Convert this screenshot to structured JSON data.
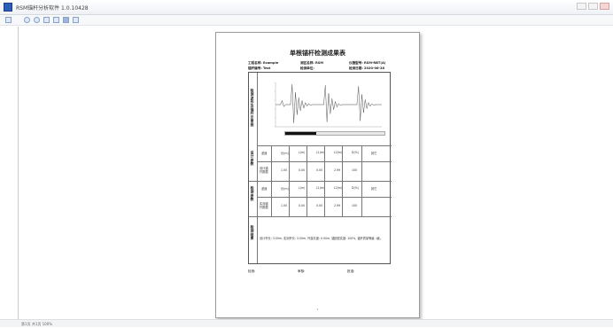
{
  "window": {
    "title": "RSM锚杆分析软件 1.0.10428"
  },
  "toolbar": {
    "buttons": [
      "print-icon",
      "zoom-in-icon",
      "zoom-out-icon",
      "fit-page-icon",
      "fit-width-icon",
      "single-page-icon",
      "multi-page-icon"
    ]
  },
  "statusbar": {
    "text": "第1页 共1页   100%"
  },
  "report": {
    "title": "单根锚杆检测成果表",
    "meta": {
      "project_label": "工程名称:",
      "project_value": "Example",
      "site_label": "测区名称:",
      "site_value": "RSM",
      "instrument_label": "仪器型号:",
      "instrument_value": "RSM-RBT(A)",
      "anchor_label": "锚杆编号:",
      "anchor_value": "Test",
      "unit_label": "检测单位:",
      "unit_value": "",
      "date_label": "检测日期:",
      "date_value": "2020-06-28"
    },
    "sections": {
      "waveform": "检测波形及锚杆示意图",
      "design": "设计参数",
      "measured": "检测参数",
      "conclusion": "检测结果"
    },
    "design_table": {
      "header": [
        "波速",
        "长(m)",
        "L(m)",
        "L1(m)",
        "L2(m)",
        "D(%)",
        "其它"
      ],
      "row_label": "设计锚杆数据",
      "row": [
        "1.00",
        "0.00",
        "0.00",
        "2.99",
        "100"
      ]
    },
    "measured_table": {
      "header": [
        "波速",
        "长(m)",
        "L(m)",
        "L1(m)",
        "L2(m)",
        "D(%)",
        "其它"
      ],
      "row_label": "实测锚杆数据",
      "row": [
        "1.00",
        "0.00",
        "0.00",
        "2.99",
        "100"
      ]
    },
    "conclusion_text": "设计杆长: 3.00m, 实测杆长: 3.00m, 外露长度: 0.00m, 锚固密实度: 100%, 锚杆质量等级: I级。",
    "signatures": {
      "tester": "检测:",
      "reviewer": "审核:",
      "approver": "批准:"
    },
    "page_number": "1"
  },
  "chart_data": {
    "type": "line",
    "title": "",
    "xlabel": "",
    "ylabel": "",
    "series": [
      {
        "values": [
          0,
          0,
          0,
          0,
          0.2,
          -0.1,
          0,
          0,
          0,
          0,
          1.0,
          -0.9,
          0.6,
          -0.5,
          0.35,
          -0.3,
          0.2,
          -0.18,
          0.1,
          -0.08,
          0.05,
          -0.04,
          0,
          0,
          0,
          0,
          0,
          0,
          0,
          0,
          0.95,
          -0.85,
          0.55,
          -0.45,
          0.3,
          -0.25,
          0.15,
          -0.12,
          0.06,
          -0.04,
          0,
          0,
          0,
          0,
          0,
          0,
          0,
          0,
          0,
          0,
          0.9,
          -0.8,
          0.5,
          -0.4,
          0.25,
          -0.2,
          0.1,
          -0.08,
          0.04,
          -0.03,
          0,
          0,
          0,
          0,
          0
        ]
      }
    ],
    "bar_fill_fraction": 0.31
  }
}
